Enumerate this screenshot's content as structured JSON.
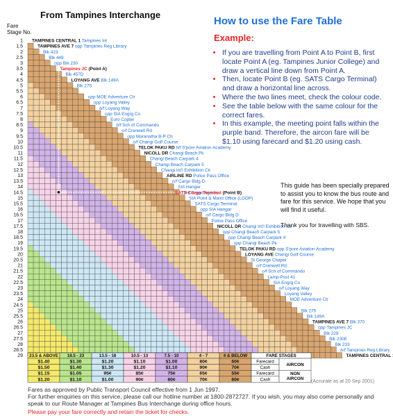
{
  "title": "From Tampines Interchange",
  "fare_stage_header": [
    "Fare",
    "Stage No."
  ],
  "guide": {
    "title": "How to use the Fare Table",
    "example_label": "Example:",
    "steps": [
      "If you are travelling from Point A to Point B, first locate Point A (eg. Tampines Junior College) and draw a vertical line down from Point A.",
      "Then, locate Point B (eg. SATS Cargo Terminal) and draw a horizontal line across.",
      "Where the two lines meet, check the colour code.",
      "See the table below with the same colour for the correct fares.",
      "In this example, the meeting point falls within the purple band. Therefore, the aircon fare will be $1.10 using farecard and $1.20 using cash."
    ]
  },
  "note": [
    "This guide has been specially prepared to assist you to know the bus route and fare for this service. We hope that you will find it useful."
  ],
  "thanks": "Thank you for travelling with SBS.",
  "accuracy": "(Accurate as at 20 Sep 2001)",
  "footer": {
    "line1": "Fares as approved by Public Transport Council effective from 1 Jun 1997.",
    "line2": "For further enquiries on this service, please call our hotline number at 1800-2872727. If you wish, you may also come personally and speak to our Route Manager at Tampines Bus Interchange during office hours.",
    "pay": "Please pay your fare correctly and retain the ticket for checks."
  },
  "colors": {
    "bands": [
      "#f5e96b",
      "#b9e58c",
      "#cde7f4",
      "#f7d3e8",
      "#d1b4e7",
      "#f3d2a0",
      "#d9a56f"
    ],
    "title_blue": "#1f6fd6",
    "accent_red": "#e8252a"
  },
  "stages": [
    "1",
    "1.5",
    "2",
    "2.5",
    "3",
    "3.5",
    "4",
    "4.5",
    "5",
    "5.5",
    "6",
    "6.5",
    "7",
    "7.5",
    "8",
    "8.5",
    "9",
    "9.5",
    "10",
    "10.5",
    "11",
    "11.5",
    "12",
    "12.5",
    "13",
    "13.5",
    "14",
    "14.5",
    "15",
    "15.5",
    "16",
    "16.5",
    "17",
    "17.5",
    "18",
    "18.5",
    "19",
    "19.5",
    "20",
    "20.5",
    "21",
    "21.5",
    "22",
    "22.5",
    "23",
    "23.5",
    "24",
    "24.5",
    "25",
    "25.5",
    "26",
    "26.5",
    "27",
    "27.5",
    "28",
    "28.5",
    "29"
  ],
  "stops": [
    {
      "pre": "",
      "name": "TAMPINES CENTRAL 1",
      "post": "Tampines Int",
      "bold": true
    },
    {
      "pre": "",
      "name": "TAMPINES AVE 7",
      "post": "opp Tampines Reg Library",
      "bold": true
    },
    {
      "pre": "",
      "name": "",
      "post": "Blk 423",
      "bold": false
    },
    {
      "pre": "",
      "name": "",
      "post": "Blk 449",
      "bold": false
    },
    {
      "pre": "opp",
      "name": "",
      "post": "Blk 230",
      "bold": false
    },
    {
      "pre": "",
      "name": "Tampines JC",
      "post": "(Point A)",
      "bold": true,
      "red": true
    },
    {
      "pre": "",
      "name": "",
      "post": "Blk 457D",
      "bold": false
    },
    {
      "pre": "",
      "name": "LOYANG AVE",
      "post": "Blk 149A",
      "bold": true
    },
    {
      "pre": "",
      "name": "",
      "post": "Blk 275",
      "bold": false
    },
    {
      "pre": "",
      "name": "",
      "post": "",
      "bold": false
    },
    {
      "pre": "opp",
      "name": "",
      "post": "MOE Adventure Ctr",
      "bold": false
    },
    {
      "pre": "opp",
      "name": "",
      "post": "Loyang Valley",
      "bold": false
    },
    {
      "pre": "b/f",
      "name": "",
      "post": "Loyang Way",
      "bold": false
    },
    {
      "pre": "opp",
      "name": "",
      "post": "SIA Engrg Co",
      "bold": false
    },
    {
      "pre": "",
      "name": "",
      "post": "Euro Copter",
      "bold": false
    },
    {
      "pre": "b/f",
      "name": "",
      "post": "Sch of Commando",
      "bold": false
    },
    {
      "pre": "o/f",
      "name": "",
      "post": "Cranwell Rd",
      "bold": false
    },
    {
      "pre": "opp",
      "name": "",
      "post": "Maranatha B-P Ch",
      "bold": false
    },
    {
      "pre": "o/f",
      "name": "",
      "post": "Changi Golf Course",
      "bold": false
    },
    {
      "pre": "",
      "name": "TELOK PAKU RD",
      "post": "b/f S'pore Aviation Academy",
      "bold": true
    },
    {
      "pre": "",
      "name": "NICOLL DR",
      "post": "Changi Beach Pk",
      "bold": true
    },
    {
      "pre": "",
      "name": "",
      "post": "Changi Beach Carpark 4",
      "bold": false
    },
    {
      "pre": "",
      "name": "",
      "post": "Changi Beach Carpark 5",
      "bold": false
    },
    {
      "pre": "",
      "name": "",
      "post": "Changi Int'l Exhibition Ctr",
      "bold": false
    },
    {
      "pre": "",
      "name": "AIRLINE RD",
      "post": "Police Pass Office",
      "bold": true
    },
    {
      "pre": "o/f",
      "name": "",
      "post": "Cargo Bldg D",
      "bold": false
    },
    {
      "pre": "",
      "name": "",
      "post": "SIA Hangar",
      "bold": false
    },
    {
      "pre": "",
      "name": "",
      "post": "3rd Cargo Agents",
      "bold": false
    },
    {
      "pre": "",
      "name": "",
      "post": "SIA Point & Maint Office (LOOP)",
      "bold": false
    },
    {
      "pre": "",
      "name": "",
      "post": "SATS Cargo Terminal",
      "bold": false
    },
    {
      "pre": "opp",
      "name": "",
      "post": "SIA Hangar",
      "bold": false
    },
    {
      "pre": "o/f",
      "name": "",
      "post": "Cargo Bldg D",
      "bold": false
    },
    {
      "pre": "",
      "name": "",
      "post": "Police Pass Office",
      "bold": false
    },
    {
      "pre": "",
      "name": "NICOLL DR",
      "post": "Changi Int'l Exhibition Ctr",
      "bold": true
    },
    {
      "pre": "opp",
      "name": "",
      "post": "Changi Beach Carpark 5",
      "bold": false
    },
    {
      "pre": "opp",
      "name": "",
      "post": "Changi Beach Carpark 4",
      "bold": false
    },
    {
      "pre": "opp",
      "name": "",
      "post": "Changi Beach Pk",
      "bold": false
    },
    {
      "pre": "",
      "name": "TELOK PAKU RD",
      "post": "opp S'pore Aviation Academy",
      "bold": true
    },
    {
      "pre": "",
      "name": "LOYANG AVE",
      "post": "Changi Golf Course",
      "bold": true
    },
    {
      "pre": "",
      "name": "",
      "post": "St George Chapel",
      "bold": false
    },
    {
      "pre": "o/f",
      "name": "",
      "post": "Cranwell Rd",
      "bold": false
    },
    {
      "pre": "o/f",
      "name": "",
      "post": "Sch of Commando",
      "bold": false
    },
    {
      "pre": "",
      "name": "",
      "post": "Lamp-Post 41",
      "bold": false
    },
    {
      "pre": "",
      "name": "",
      "post": "SIA Engrg Co",
      "bold": false
    },
    {
      "pre": "o/f",
      "name": "",
      "post": "Loyang Way",
      "bold": false
    },
    {
      "pre": "",
      "name": "",
      "post": "Loyang Valley",
      "bold": false
    },
    {
      "pre": "",
      "name": "",
      "post": "MOE Adventure Ctr",
      "bold": false
    },
    {
      "pre": "",
      "name": "",
      "post": "",
      "bold": false
    },
    {
      "pre": "",
      "name": "",
      "post": "Blk 275",
      "bold": false
    },
    {
      "pre": "",
      "name": "",
      "post": "Blk 149A",
      "bold": false
    },
    {
      "pre": "",
      "name": "TAMPINES AVE 7",
      "post": "Blk 370",
      "bold": true
    },
    {
      "pre": "opp",
      "name": "",
      "post": "Tampines JC",
      "bold": false
    },
    {
      "pre": "",
      "name": "",
      "post": "Blk 229",
      "bold": false
    },
    {
      "pre": "",
      "name": "",
      "post": "Blk 230E",
      "bold": false
    },
    {
      "pre": "",
      "name": "",
      "post": "Blk 233",
      "bold": false
    },
    {
      "pre": "b/f",
      "name": "",
      "post": "Tampines Reg Library",
      "bold": false
    },
    {
      "pre": "",
      "name": "TAMPINES CENTRAL 1",
      "post": "Tampines Int",
      "bold": true
    }
  ],
  "point_b": {
    "name": "SATS Cargo Terminal",
    "label": "(Point B)"
  },
  "fare_table": {
    "ranges": [
      "23.5 & ABOVE",
      "18.5 - 23",
      "13.5 - 18",
      "10.5 - 13",
      "7.5 - 10",
      "4 - 7",
      "4 & BELOW"
    ],
    "stages_header": "FARE STAGES",
    "rows": [
      {
        "cells": [
          "$1.40",
          "$1.30",
          "$1.20",
          "$1.10",
          "$1.00",
          "80¢",
          "60¢"
        ],
        "type": "Farecard"
      },
      {
        "cells": [
          "$1.50",
          "$1.40",
          "$1.30",
          "$1.20",
          "$1.10",
          "90¢",
          "70¢"
        ],
        "type": "Cash"
      },
      {
        "cells": [
          "$1.15",
          "$1.05",
          "95¢",
          "85¢",
          "75¢",
          "65¢",
          "55¢"
        ],
        "type": "Farecard"
      },
      {
        "cells": [
          "$1.20",
          "$1.10",
          "$1.00",
          "90¢",
          "80¢",
          "70¢",
          "60¢"
        ],
        "type": "Cash"
      }
    ],
    "aircon_label": "AIRCON",
    "non_aircon_label": [
      "NON",
      "AIRCON"
    ]
  }
}
